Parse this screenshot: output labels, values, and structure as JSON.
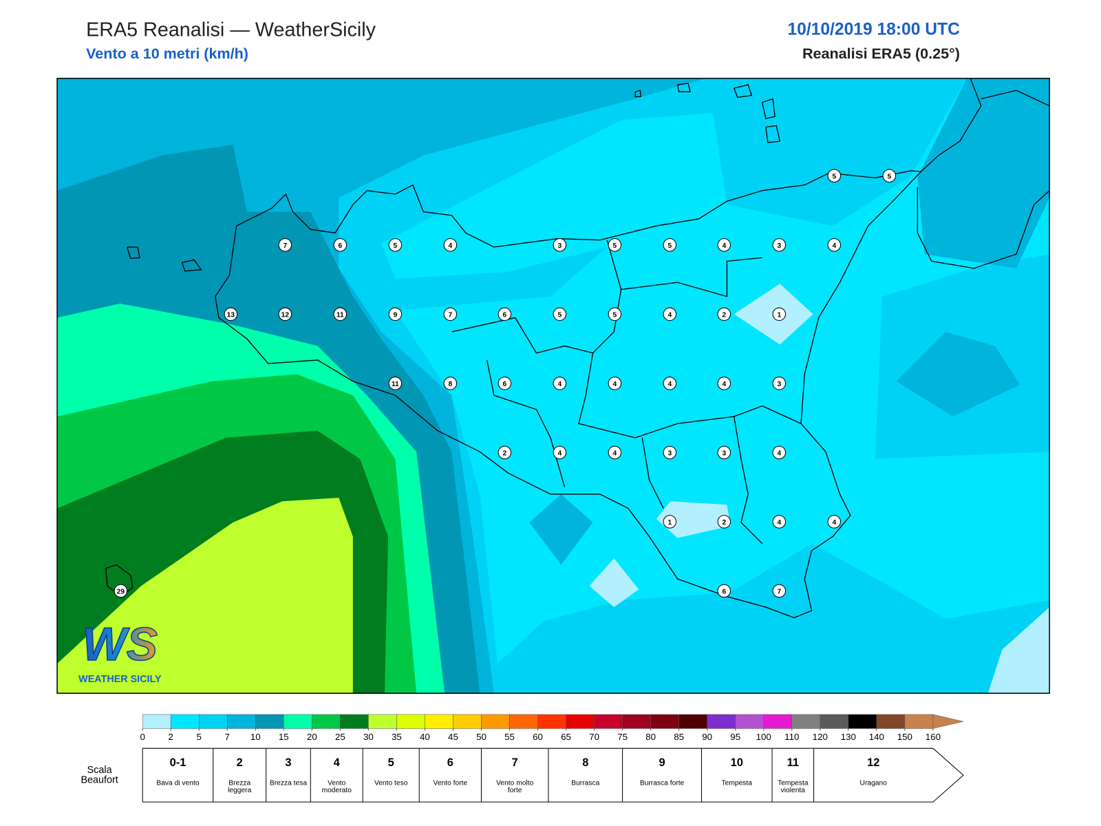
{
  "header": {
    "title": "ERA5 Reanalisi — WeatherSicily",
    "subtitle": "Vento a 10 metri (km/h)",
    "datetime": "10/10/2019 18:00 UTC",
    "source": "Reanalisi ERA5 (0.25°)"
  },
  "map": {
    "stations": [
      7,
      6,
      5,
      4,
      3,
      5,
      5,
      4,
      3,
      4,
      13,
      12,
      11,
      9,
      7,
      6,
      5,
      5,
      4,
      2,
      1,
      11,
      8,
      6,
      4,
      4,
      4,
      4,
      3,
      2,
      4,
      4,
      3,
      3,
      4,
      1,
      2,
      4,
      4,
      6,
      7,
      5,
      5,
      29
    ],
    "logo": {
      "mark": "WS",
      "name": "WEATHER SICILY"
    }
  },
  "colorbar": {
    "ticks": [
      0,
      2,
      5,
      7,
      10,
      15,
      20,
      25,
      30,
      35,
      40,
      45,
      50,
      55,
      60,
      65,
      70,
      75,
      80,
      85,
      90,
      95,
      100,
      110,
      120,
      130,
      140,
      150,
      160
    ],
    "colors": [
      "#b3f0ff",
      "#00e6ff",
      "#00d2f5",
      "#00b4dc",
      "#0096b4",
      "#00ffaa",
      "#00c846",
      "#007d1e",
      "#bfff2e",
      "#dcff00",
      "#ffee00",
      "#ffcc00",
      "#ff9900",
      "#ff6600",
      "#ff3300",
      "#e60000",
      "#c8002a",
      "#a00020",
      "#7d0010",
      "#500000",
      "#7d2dd2",
      "#b450d2",
      "#e619d2",
      "#808080",
      "#5a5a5a",
      "#000000",
      "#824628",
      "#c8824b"
    ]
  },
  "beaufort": {
    "label": "Scala Beaufort",
    "levels": [
      {
        "force": "0-1",
        "description": "Bava di vento"
      },
      {
        "force": 2,
        "description": "Brezza leggera"
      },
      {
        "force": 3,
        "description": "Brezza tesa"
      },
      {
        "force": 4,
        "description": "Vento moderato"
      },
      {
        "force": 5,
        "description": "Vento teso"
      },
      {
        "force": 6,
        "description": "Vento forte"
      },
      {
        "force": 7,
        "description": "Vento molto forte"
      },
      {
        "force": 8,
        "description": "Burrasca"
      },
      {
        "force": 9,
        "description": "Burrasca forte"
      },
      {
        "force": 10,
        "description": "Tempesta"
      },
      {
        "force": 11,
        "description": "Tempesta violenta"
      },
      {
        "force": 12,
        "description": "Uragano"
      }
    ]
  }
}
